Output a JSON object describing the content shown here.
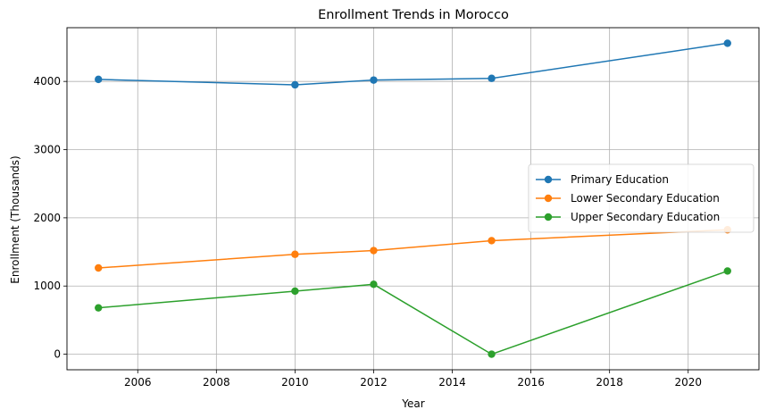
{
  "chart_data": {
    "type": "line",
    "title": "Enrollment Trends in Morocco",
    "xlabel": "Year",
    "ylabel": "Enrollment (Thousands)",
    "x": [
      2005,
      2010,
      2012,
      2015,
      2021
    ],
    "series": [
      {
        "name": "Primary Education",
        "color": "#1f77b4",
        "values": [
          4030,
          3950,
          4020,
          4045,
          4560
        ]
      },
      {
        "name": "Lower Secondary Education",
        "color": "#ff7f0e",
        "values": [
          1265,
          1465,
          1520,
          1665,
          1825
        ]
      },
      {
        "name": "Upper Secondary Education",
        "color": "#2ca02c",
        "values": [
          680,
          925,
          1025,
          0,
          1220
        ]
      }
    ],
    "xlim": [
      2004.2,
      2021.8
    ],
    "ylim": [
      -228,
      4788
    ],
    "xticks": [
      2006,
      2008,
      2010,
      2012,
      2014,
      2016,
      2018,
      2020
    ],
    "yticks": [
      0,
      1000,
      2000,
      3000,
      4000
    ],
    "grid": true,
    "legend_position": "center-right",
    "marker": "circle"
  }
}
